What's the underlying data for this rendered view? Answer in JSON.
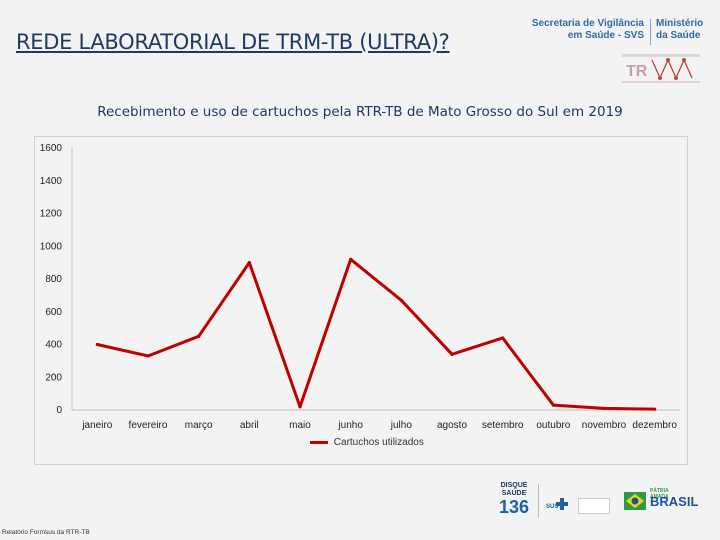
{
  "slide": {
    "title": "REDE LABORATORIAL DE TRM-TB (ULTRA)?",
    "source_note": "Relatório Formsus da RTR-TB"
  },
  "logos": {
    "svs_left": [
      "Secretaria de Vigilância",
      "em Saúde - SVS"
    ],
    "svs_right": [
      "Ministério",
      "da Saúde"
    ],
    "disque": [
      "DISQUE",
      "SAÚDE",
      "136"
    ],
    "sus": "SUS",
    "patria": "PÁTRIA AMADA",
    "brasil": "BRASIL"
  },
  "colors": {
    "line": "#c00000",
    "title": "#1f3864",
    "axis": "#bfbfbf"
  },
  "chart_data": {
    "type": "line",
    "title": "Recebimento e uso de cartuchos pela RTR-TB de Mato Grosso do Sul em 2019",
    "categories": [
      "janeiro",
      "fevereiro",
      "março",
      "abril",
      "maio",
      "junho",
      "julho",
      "agosto",
      "setembro",
      "outubro",
      "novembro",
      "dezembro"
    ],
    "series": [
      {
        "name": "Cartuchos utilizados",
        "values": [
          400,
          330,
          450,
          900,
          20,
          920,
          670,
          340,
          440,
          30,
          10,
          5
        ],
        "color": "#c00000"
      }
    ],
    "ylim": [
      0,
      1600
    ],
    "yticks": [
      0,
      200,
      400,
      600,
      800,
      1000,
      1200,
      1400,
      1600
    ],
    "grid": false,
    "legend": "bottom"
  }
}
